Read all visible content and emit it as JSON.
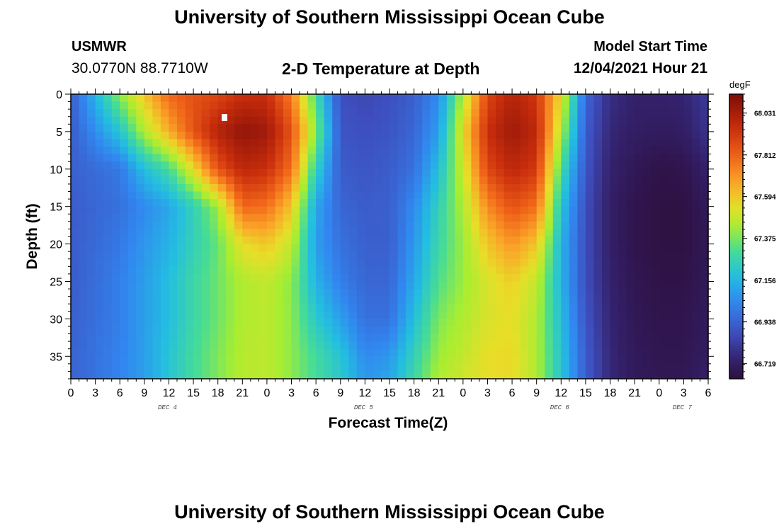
{
  "header": {
    "title": "University of Southern Mississippi Ocean Cube",
    "station": "USMWR",
    "coords": "30.0770N  88.7710W",
    "plot_title": "2-D Temperature at Depth",
    "model_label": "Model Start Time",
    "model_time": "12/04/2021 Hour 21"
  },
  "footer": {
    "title": "University of Southern Mississippi Ocean Cube"
  },
  "chart_data": {
    "type": "heatmap",
    "xlabel": "Forecast Time(Z)",
    "ylabel": "Depth (ft)",
    "colorbar_unit": "degF",
    "colorbar_ticks": [
      68.031,
      67.812,
      67.594,
      67.375,
      67.156,
      66.938,
      66.719
    ],
    "colorbar_range": [
      66.64,
      68.13
    ],
    "ylim": [
      0,
      38
    ],
    "y_ticks": [
      0,
      5,
      10,
      15,
      20,
      25,
      30,
      35
    ],
    "y_inverted": true,
    "x_ticks": [
      "0",
      "3",
      "6",
      "9",
      "12",
      "15",
      "18",
      "21",
      "0",
      "3",
      "6",
      "9",
      "12",
      "15",
      "18",
      "21",
      "0",
      "3",
      "6",
      "9",
      "12",
      "15",
      "18",
      "21",
      "0",
      "3",
      "6"
    ],
    "day_labels": [
      "DEC 4",
      "DEC 5",
      "DEC 6",
      "DEC 7"
    ],
    "x_hours": [
      0,
      6,
      9,
      12,
      15,
      18,
      21,
      24,
      27,
      30,
      33,
      36,
      39,
      42,
      45,
      48,
      51,
      54,
      57,
      60,
      63,
      66,
      69,
      72,
      75,
      78
    ],
    "depths_ft": [
      0,
      5,
      10,
      15,
      20,
      25,
      30,
      35,
      38
    ],
    "temps_degF": [
      [
        66.92,
        66.92,
        66.93,
        66.92,
        66.92,
        66.92,
        66.93,
        66.94,
        66.94
      ],
      [
        67.4,
        67.2,
        67.0,
        66.98,
        67.0,
        67.02,
        67.02,
        67.03,
        67.03
      ],
      [
        67.6,
        67.45,
        67.18,
        67.05,
        67.08,
        67.1,
        67.1,
        67.1,
        67.1
      ],
      [
        67.8,
        67.65,
        67.3,
        67.12,
        67.15,
        67.18,
        67.18,
        67.2,
        67.2
      ],
      [
        67.85,
        67.85,
        67.55,
        67.25,
        67.25,
        67.28,
        67.28,
        67.3,
        67.3
      ],
      [
        67.88,
        68.0,
        67.85,
        67.42,
        67.35,
        67.36,
        67.36,
        67.38,
        67.38
      ],
      [
        67.95,
        68.08,
        67.98,
        67.8,
        67.55,
        67.45,
        67.45,
        67.46,
        67.46
      ],
      [
        67.95,
        68.05,
        67.95,
        67.78,
        67.6,
        67.48,
        67.47,
        67.47,
        67.47
      ],
      [
        67.75,
        67.85,
        67.78,
        67.6,
        67.48,
        67.4,
        67.4,
        67.4,
        67.4
      ],
      [
        67.3,
        67.4,
        67.25,
        67.12,
        67.1,
        67.15,
        67.22,
        67.3,
        67.3
      ],
      [
        66.88,
        66.9,
        66.92,
        66.95,
        66.98,
        67.02,
        67.1,
        67.2,
        67.22
      ],
      [
        66.86,
        66.88,
        66.9,
        66.92,
        66.93,
        66.95,
        66.98,
        67.05,
        67.08
      ],
      [
        66.88,
        66.9,
        66.92,
        66.93,
        66.93,
        66.95,
        66.98,
        67.08,
        67.12
      ],
      [
        66.93,
        66.95,
        66.98,
        67.05,
        67.08,
        67.12,
        67.18,
        67.25,
        67.28
      ],
      [
        67.05,
        67.1,
        67.18,
        67.25,
        67.28,
        67.32,
        67.38,
        67.42,
        67.45
      ],
      [
        67.45,
        67.55,
        67.5,
        67.45,
        67.42,
        67.42,
        67.45,
        67.48,
        67.5
      ],
      [
        67.88,
        67.95,
        67.88,
        67.72,
        67.6,
        67.52,
        67.52,
        67.55,
        67.55
      ],
      [
        68.0,
        68.05,
        67.98,
        67.85,
        67.7,
        67.58,
        67.55,
        67.56,
        67.56
      ],
      [
        67.92,
        67.98,
        67.92,
        67.78,
        67.6,
        67.48,
        67.45,
        67.45,
        67.45
      ],
      [
        67.55,
        67.45,
        67.3,
        67.2,
        67.15,
        67.15,
        67.18,
        67.2,
        67.2
      ],
      [
        66.95,
        66.92,
        66.9,
        66.88,
        66.88,
        66.88,
        66.9,
        66.92,
        66.92
      ],
      [
        66.78,
        66.76,
        66.74,
        66.73,
        66.73,
        66.74,
        66.75,
        66.76,
        66.76
      ],
      [
        66.74,
        66.72,
        66.69,
        66.67,
        66.67,
        66.68,
        66.69,
        66.7,
        66.7
      ],
      [
        66.74,
        66.71,
        66.66,
        66.65,
        66.65,
        66.66,
        66.67,
        66.68,
        66.69
      ],
      [
        66.75,
        66.72,
        66.67,
        66.65,
        66.65,
        66.66,
        66.67,
        66.68,
        66.69
      ],
      [
        66.82,
        66.8,
        66.74,
        66.7,
        66.69,
        66.7,
        66.71,
        66.72,
        66.73
      ]
    ]
  }
}
